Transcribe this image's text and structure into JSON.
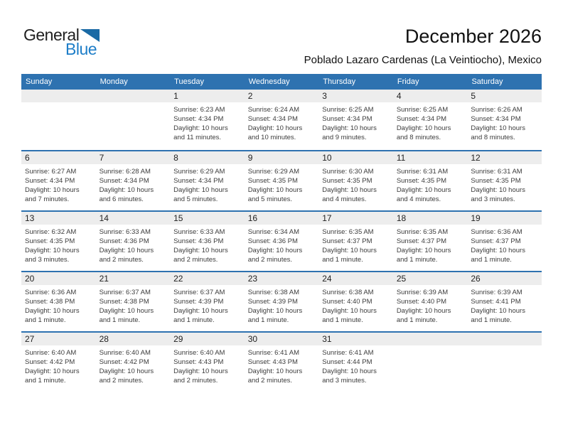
{
  "logo": {
    "general": "General",
    "blue": "Blue"
  },
  "header": {
    "title": "December 2026",
    "subtitle": "Poblado Lazaro Cardenas (La Veintiocho), Mexico"
  },
  "colors": {
    "header_bg": "#2E72B0",
    "week_separator": "#2E72B0",
    "day_strip_bg": "#EDEDED",
    "logo_triangle": "#1A6AA5",
    "logo_blue_text": "#1E7EC8",
    "detail_text": "#3C3C3C"
  },
  "calendar": {
    "day_headers": [
      "Sunday",
      "Monday",
      "Tuesday",
      "Wednesday",
      "Thursday",
      "Friday",
      "Saturday"
    ],
    "weeks": [
      [
        null,
        null,
        {
          "day": "1",
          "sunrise": "Sunrise: 6:23 AM",
          "sunset": "Sunset: 4:34 PM",
          "daylight": "Daylight: 10 hours and 11 minutes."
        },
        {
          "day": "2",
          "sunrise": "Sunrise: 6:24 AM",
          "sunset": "Sunset: 4:34 PM",
          "daylight": "Daylight: 10 hours and 10 minutes."
        },
        {
          "day": "3",
          "sunrise": "Sunrise: 6:25 AM",
          "sunset": "Sunset: 4:34 PM",
          "daylight": "Daylight: 10 hours and 9 minutes."
        },
        {
          "day": "4",
          "sunrise": "Sunrise: 6:25 AM",
          "sunset": "Sunset: 4:34 PM",
          "daylight": "Daylight: 10 hours and 8 minutes."
        },
        {
          "day": "5",
          "sunrise": "Sunrise: 6:26 AM",
          "sunset": "Sunset: 4:34 PM",
          "daylight": "Daylight: 10 hours and 8 minutes."
        }
      ],
      [
        {
          "day": "6",
          "sunrise": "Sunrise: 6:27 AM",
          "sunset": "Sunset: 4:34 PM",
          "daylight": "Daylight: 10 hours and 7 minutes."
        },
        {
          "day": "7",
          "sunrise": "Sunrise: 6:28 AM",
          "sunset": "Sunset: 4:34 PM",
          "daylight": "Daylight: 10 hours and 6 minutes."
        },
        {
          "day": "8",
          "sunrise": "Sunrise: 6:29 AM",
          "sunset": "Sunset: 4:34 PM",
          "daylight": "Daylight: 10 hours and 5 minutes."
        },
        {
          "day": "9",
          "sunrise": "Sunrise: 6:29 AM",
          "sunset": "Sunset: 4:35 PM",
          "daylight": "Daylight: 10 hours and 5 minutes."
        },
        {
          "day": "10",
          "sunrise": "Sunrise: 6:30 AM",
          "sunset": "Sunset: 4:35 PM",
          "daylight": "Daylight: 10 hours and 4 minutes."
        },
        {
          "day": "11",
          "sunrise": "Sunrise: 6:31 AM",
          "sunset": "Sunset: 4:35 PM",
          "daylight": "Daylight: 10 hours and 4 minutes."
        },
        {
          "day": "12",
          "sunrise": "Sunrise: 6:31 AM",
          "sunset": "Sunset: 4:35 PM",
          "daylight": "Daylight: 10 hours and 3 minutes."
        }
      ],
      [
        {
          "day": "13",
          "sunrise": "Sunrise: 6:32 AM",
          "sunset": "Sunset: 4:35 PM",
          "daylight": "Daylight: 10 hours and 3 minutes."
        },
        {
          "day": "14",
          "sunrise": "Sunrise: 6:33 AM",
          "sunset": "Sunset: 4:36 PM",
          "daylight": "Daylight: 10 hours and 2 minutes."
        },
        {
          "day": "15",
          "sunrise": "Sunrise: 6:33 AM",
          "sunset": "Sunset: 4:36 PM",
          "daylight": "Daylight: 10 hours and 2 minutes."
        },
        {
          "day": "16",
          "sunrise": "Sunrise: 6:34 AM",
          "sunset": "Sunset: 4:36 PM",
          "daylight": "Daylight: 10 hours and 2 minutes."
        },
        {
          "day": "17",
          "sunrise": "Sunrise: 6:35 AM",
          "sunset": "Sunset: 4:37 PM",
          "daylight": "Daylight: 10 hours and 1 minute."
        },
        {
          "day": "18",
          "sunrise": "Sunrise: 6:35 AM",
          "sunset": "Sunset: 4:37 PM",
          "daylight": "Daylight: 10 hours and 1 minute."
        },
        {
          "day": "19",
          "sunrise": "Sunrise: 6:36 AM",
          "sunset": "Sunset: 4:37 PM",
          "daylight": "Daylight: 10 hours and 1 minute."
        }
      ],
      [
        {
          "day": "20",
          "sunrise": "Sunrise: 6:36 AM",
          "sunset": "Sunset: 4:38 PM",
          "daylight": "Daylight: 10 hours and 1 minute."
        },
        {
          "day": "21",
          "sunrise": "Sunrise: 6:37 AM",
          "sunset": "Sunset: 4:38 PM",
          "daylight": "Daylight: 10 hours and 1 minute."
        },
        {
          "day": "22",
          "sunrise": "Sunrise: 6:37 AM",
          "sunset": "Sunset: 4:39 PM",
          "daylight": "Daylight: 10 hours and 1 minute."
        },
        {
          "day": "23",
          "sunrise": "Sunrise: 6:38 AM",
          "sunset": "Sunset: 4:39 PM",
          "daylight": "Daylight: 10 hours and 1 minute."
        },
        {
          "day": "24",
          "sunrise": "Sunrise: 6:38 AM",
          "sunset": "Sunset: 4:40 PM",
          "daylight": "Daylight: 10 hours and 1 minute."
        },
        {
          "day": "25",
          "sunrise": "Sunrise: 6:39 AM",
          "sunset": "Sunset: 4:40 PM",
          "daylight": "Daylight: 10 hours and 1 minute."
        },
        {
          "day": "26",
          "sunrise": "Sunrise: 6:39 AM",
          "sunset": "Sunset: 4:41 PM",
          "daylight": "Daylight: 10 hours and 1 minute."
        }
      ],
      [
        {
          "day": "27",
          "sunrise": "Sunrise: 6:40 AM",
          "sunset": "Sunset: 4:42 PM",
          "daylight": "Daylight: 10 hours and 1 minute."
        },
        {
          "day": "28",
          "sunrise": "Sunrise: 6:40 AM",
          "sunset": "Sunset: 4:42 PM",
          "daylight": "Daylight: 10 hours and 2 minutes."
        },
        {
          "day": "29",
          "sunrise": "Sunrise: 6:40 AM",
          "sunset": "Sunset: 4:43 PM",
          "daylight": "Daylight: 10 hours and 2 minutes."
        },
        {
          "day": "30",
          "sunrise": "Sunrise: 6:41 AM",
          "sunset": "Sunset: 4:43 PM",
          "daylight": "Daylight: 10 hours and 2 minutes."
        },
        {
          "day": "31",
          "sunrise": "Sunrise: 6:41 AM",
          "sunset": "Sunset: 4:44 PM",
          "daylight": "Daylight: 10 hours and 3 minutes."
        },
        null,
        null
      ]
    ]
  }
}
